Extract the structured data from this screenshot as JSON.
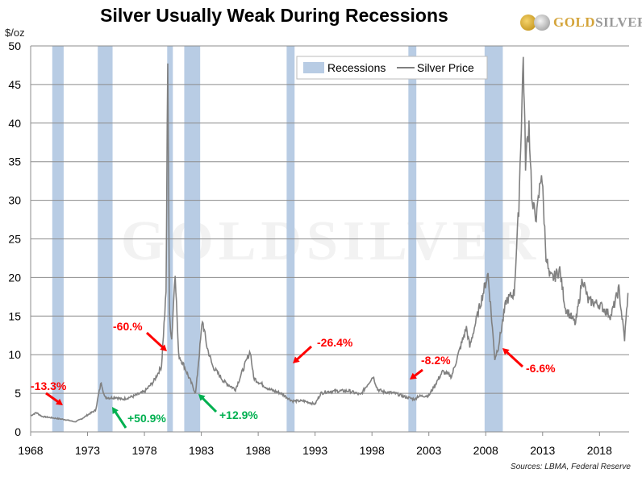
{
  "chart_data": {
    "type": "line",
    "title": "Silver Usually Weak During Recessions",
    "ylabel": "$/oz",
    "ylim": [
      0,
      50
    ],
    "xlim": [
      1968,
      2020.6
    ],
    "yticks": [
      0,
      5,
      10,
      15,
      20,
      25,
      30,
      35,
      40,
      45,
      50
    ],
    "xticks": [
      1968,
      1973,
      1978,
      1983,
      1988,
      1993,
      1998,
      2003,
      2008,
      2013,
      2018
    ],
    "grid": "horizontal",
    "legend": {
      "position": "top-right",
      "entries": [
        "Recessions",
        "Silver Price"
      ]
    },
    "colors": {
      "recession": "#b8cce4",
      "price": "#808080",
      "negative": "#ff0000",
      "positive": "#00b050",
      "grid": "#8c8c8c"
    },
    "recessions": [
      [
        1969.9,
        1970.9
      ],
      [
        1973.9,
        1975.2
      ],
      [
        1980.0,
        1980.5
      ],
      [
        1981.5,
        1982.9
      ],
      [
        1990.5,
        1991.2
      ],
      [
        2001.2,
        2001.9
      ],
      [
        2007.9,
        2009.5
      ]
    ],
    "series": [
      {
        "name": "Silver Price",
        "points": [
          [
            1968.0,
            2.1
          ],
          [
            1968.5,
            2.5
          ],
          [
            1969.0,
            2.0
          ],
          [
            1970.0,
            1.8
          ],
          [
            1971.0,
            1.6
          ],
          [
            1971.9,
            1.3
          ],
          [
            1972.5,
            1.7
          ],
          [
            1973.0,
            2.2
          ],
          [
            1973.7,
            2.8
          ],
          [
            1974.2,
            6.5
          ],
          [
            1974.5,
            4.5
          ],
          [
            1975.0,
            4.4
          ],
          [
            1975.5,
            4.5
          ],
          [
            1976.0,
            4.2
          ],
          [
            1977.0,
            4.6
          ],
          [
            1978.0,
            5.2
          ],
          [
            1978.8,
            6.5
          ],
          [
            1979.5,
            8.5
          ],
          [
            1979.9,
            18
          ],
          [
            1980.05,
            49
          ],
          [
            1980.2,
            15
          ],
          [
            1980.4,
            12
          ],
          [
            1980.7,
            21
          ],
          [
            1981.0,
            10
          ],
          [
            1981.5,
            8.5
          ],
          [
            1982.5,
            5
          ],
          [
            1983.1,
            14.5
          ],
          [
            1983.5,
            11
          ],
          [
            1984.0,
            8.5
          ],
          [
            1985.0,
            6.5
          ],
          [
            1986.0,
            5.5
          ],
          [
            1987.3,
            10.5
          ],
          [
            1987.6,
            7
          ],
          [
            1988.0,
            6.5
          ],
          [
            1989.0,
            5.5
          ],
          [
            1990.0,
            5.0
          ],
          [
            1991.0,
            4.0
          ],
          [
            1992.0,
            4.0
          ],
          [
            1993.0,
            3.6
          ],
          [
            1993.5,
            5.0
          ],
          [
            1994.0,
            5.2
          ],
          [
            1995.0,
            5.3
          ],
          [
            1996.0,
            5.3
          ],
          [
            1997.0,
            4.8
          ],
          [
            1998.1,
            7.2
          ],
          [
            1998.5,
            5.5
          ],
          [
            1999.0,
            5.2
          ],
          [
            2000.0,
            5.0
          ],
          [
            2001.0,
            4.5
          ],
          [
            2001.8,
            4.2
          ],
          [
            2002.0,
            4.6
          ],
          [
            2003.0,
            4.7
          ],
          [
            2004.2,
            7.8
          ],
          [
            2005.0,
            7.2
          ],
          [
            2006.3,
            13.5
          ],
          [
            2006.6,
            11
          ],
          [
            2007.0,
            13.5
          ],
          [
            2008.2,
            20.5
          ],
          [
            2008.8,
            9.5
          ],
          [
            2009.1,
            11
          ],
          [
            2009.8,
            17
          ],
          [
            2010.5,
            18
          ],
          [
            2010.9,
            29
          ],
          [
            2011.3,
            48.5
          ],
          [
            2011.5,
            35
          ],
          [
            2011.8,
            40
          ],
          [
            2012.1,
            29
          ],
          [
            2012.5,
            28
          ],
          [
            2012.9,
            34
          ],
          [
            2013.3,
            23
          ],
          [
            2013.6,
            20
          ],
          [
            2014.0,
            20
          ],
          [
            2014.5,
            21
          ],
          [
            2015.0,
            16
          ],
          [
            2015.9,
            14
          ],
          [
            2016.5,
            20
          ],
          [
            2017.0,
            17
          ],
          [
            2018.0,
            16.5
          ],
          [
            2019.0,
            15
          ],
          [
            2019.7,
            18.5
          ],
          [
            2020.2,
            12
          ],
          [
            2020.5,
            18
          ]
        ]
      }
    ],
    "annotations": [
      {
        "text": "-13.3%",
        "kind": "negative"
      },
      {
        "text": "+50.9%",
        "kind": "positive"
      },
      {
        "text": "-60.%",
        "kind": "negative"
      },
      {
        "text": "+12.9%",
        "kind": "positive"
      },
      {
        "text": "-26.4%",
        "kind": "negative"
      },
      {
        "text": "-8.2%",
        "kind": "negative"
      },
      {
        "text": "-6.6%",
        "kind": "negative"
      }
    ]
  },
  "logo": {
    "gold": "GOLD",
    "silver": "SILVER",
    "watermark": "GOLDSILVER"
  },
  "source": "Sources:  LBMA,  Federal Reserve"
}
